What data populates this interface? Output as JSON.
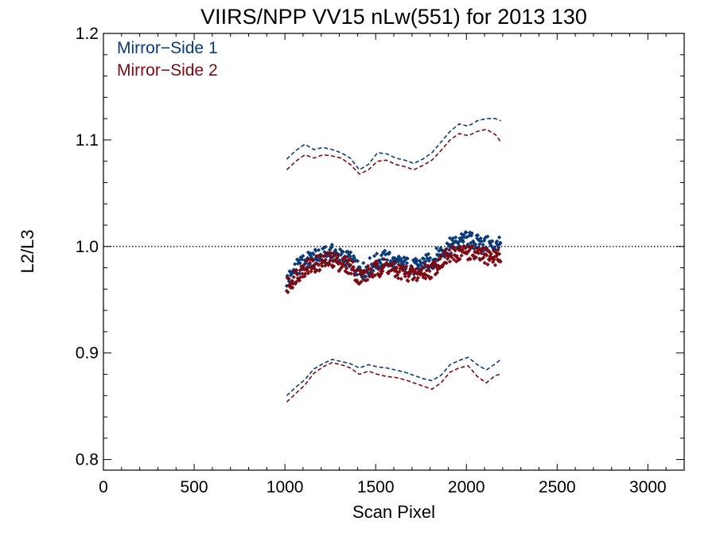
{
  "chart_data": {
    "type": "scatter",
    "title": "VIIRS/NPP VV15 nLw(551) for 2013 130",
    "xlabel": "Scan Pixel",
    "ylabel": "L2/L3",
    "xlim": [
      0,
      3200
    ],
    "ylim": [
      0.79,
      1.2
    ],
    "xticks": [
      0,
      500,
      1000,
      1500,
      2000,
      2500,
      3000
    ],
    "yticks": [
      0.8,
      0.9,
      1.0,
      1.1,
      1.2
    ],
    "xtick_labels": [
      "0",
      "500",
      "1000",
      "1500",
      "2000",
      "2500",
      "3000"
    ],
    "ytick_labels": [
      "0.8",
      "0.9",
      "1.0",
      "1.1",
      "1.2"
    ],
    "reference_line": 1.0,
    "legend_position": "top-left",
    "series": [
      {
        "name": "Mirror−Side 1",
        "color": "#0b3a7a",
        "x": [
          1010,
          1060,
          1110,
          1160,
          1210,
          1260,
          1310,
          1360,
          1410,
          1460,
          1510,
          1560,
          1610,
          1660,
          1710,
          1760,
          1810,
          1860,
          1910,
          1960,
          2010,
          2060,
          2110,
          2160,
          2190
        ],
        "mean": [
          0.968,
          0.979,
          0.986,
          0.989,
          0.991,
          0.994,
          0.99,
          0.988,
          0.976,
          0.981,
          0.986,
          0.989,
          0.984,
          0.983,
          0.98,
          0.984,
          0.986,
          0.995,
          1.0,
          1.004,
          1.007,
          1.003,
          1.002,
          1.0,
          1.001
        ],
        "upper": [
          1.082,
          1.09,
          1.096,
          1.091,
          1.093,
          1.091,
          1.088,
          1.083,
          1.072,
          1.077,
          1.088,
          1.087,
          1.083,
          1.081,
          1.078,
          1.082,
          1.088,
          1.098,
          1.108,
          1.115,
          1.113,
          1.118,
          1.12,
          1.12,
          1.118
        ],
        "lower": [
          0.86,
          0.868,
          0.875,
          0.885,
          0.89,
          0.894,
          0.892,
          0.89,
          0.886,
          0.889,
          0.887,
          0.886,
          0.884,
          0.882,
          0.879,
          0.876,
          0.874,
          0.879,
          0.889,
          0.893,
          0.896,
          0.889,
          0.884,
          0.89,
          0.894
        ]
      },
      {
        "name": "Mirror−Side 2",
        "color": "#7a0a14",
        "x": [
          1010,
          1060,
          1110,
          1160,
          1210,
          1260,
          1310,
          1360,
          1410,
          1460,
          1510,
          1560,
          1610,
          1660,
          1710,
          1760,
          1810,
          1860,
          1910,
          1960,
          2010,
          2060,
          2110,
          2160,
          2190
        ],
        "mean": [
          0.962,
          0.973,
          0.98,
          0.983,
          0.985,
          0.988,
          0.984,
          0.982,
          0.971,
          0.975,
          0.979,
          0.982,
          0.977,
          0.976,
          0.973,
          0.976,
          0.978,
          0.987,
          0.991,
          0.994,
          0.995,
          0.991,
          0.991,
          0.99,
          0.99
        ],
        "upper": [
          1.072,
          1.08,
          1.086,
          1.083,
          1.086,
          1.085,
          1.083,
          1.077,
          1.068,
          1.072,
          1.08,
          1.081,
          1.077,
          1.075,
          1.072,
          1.076,
          1.081,
          1.09,
          1.1,
          1.106,
          1.104,
          1.108,
          1.11,
          1.105,
          1.098
        ],
        "lower": [
          0.854,
          0.862,
          0.87,
          0.881,
          0.887,
          0.891,
          0.889,
          0.886,
          0.88,
          0.883,
          0.88,
          0.878,
          0.877,
          0.875,
          0.872,
          0.869,
          0.866,
          0.872,
          0.882,
          0.886,
          0.888,
          0.878,
          0.872,
          0.879,
          0.88
        ]
      }
    ]
  }
}
